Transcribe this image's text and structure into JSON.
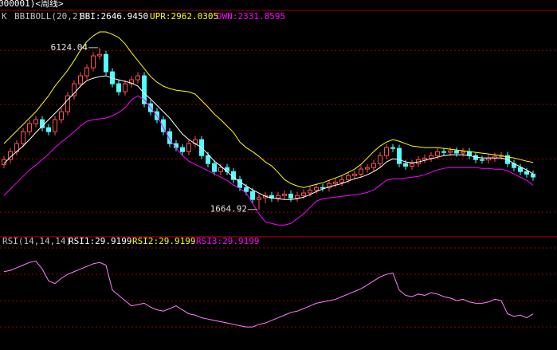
{
  "header": {
    "title": "000001)<周线>"
  },
  "chart_data": [
    {
      "type": "candlestick",
      "label": "K",
      "indicator": "BBIBOLL(20,2)",
      "legend": [
        {
          "text": "BBI:2646.9450",
          "color": "#ffffff"
        },
        {
          "text": "UPR:2962.0305",
          "color": "#ffff00"
        },
        {
          "text": "DWN:2331.8595",
          "color": "#ff00ff"
        }
      ],
      "up_color": "#ff5050",
      "down_color": "#50ffff",
      "ylim": [
        1000,
        7000
      ],
      "grid_levels": [
        1590,
        3060,
        4560,
        6050
      ],
      "grid_color": "#a00000",
      "open": [
        2900,
        3040,
        3260,
        3480,
        3810,
        4030,
        4140,
        3920,
        3810,
        4140,
        4360,
        4800,
        5130,
        5350,
        5570,
        5900,
        5940,
        5460,
        5130,
        4910,
        5130,
        5240,
        5350,
        4580,
        4360,
        4140,
        3810,
        3480,
        3370,
        3260,
        3480,
        3590,
        3150,
        2930,
        2710,
        2820,
        2710,
        2490,
        2270,
        2160,
        1940,
        1990,
        2050,
        1980,
        2050,
        2090,
        1980,
        2050,
        2120,
        2200,
        2270,
        2260,
        2380,
        2420,
        2490,
        2600,
        2640,
        2780,
        2820,
        2930,
        3150,
        3370,
        3350,
        2930,
        2860,
        2930,
        3040,
        3080,
        3150,
        3260,
        3240,
        3280,
        3220,
        3260,
        3150,
        3040,
        3030,
        3080,
        3130,
        3150,
        2930,
        2820,
        2710,
        2640
      ],
      "high": [
        3140,
        3360,
        3580,
        3910,
        4130,
        4240,
        4240,
        4020,
        4240,
        4460,
        4900,
        5230,
        5450,
        5670,
        6000,
        6124.04,
        6040,
        5560,
        5230,
        5230,
        5340,
        5450,
        5450,
        4680,
        4460,
        4240,
        3910,
        3580,
        3470,
        3580,
        3690,
        3690,
        3250,
        3030,
        2920,
        2920,
        2810,
        2590,
        2370,
        2260,
        2090,
        2150,
        2150,
        2150,
        2190,
        2190,
        2150,
        2220,
        2300,
        2370,
        2370,
        2480,
        2520,
        2590,
        2700,
        2740,
        2880,
        2920,
        3030,
        3250,
        3470,
        3470,
        3450,
        3030,
        3030,
        3140,
        3180,
        3250,
        3360,
        3360,
        3380,
        3380,
        3360,
        3360,
        3250,
        3140,
        3180,
        3230,
        3250,
        3250,
        3030,
        2920,
        2810,
        2740
      ],
      "low": [
        2800,
        2940,
        3160,
        3380,
        3710,
        3930,
        3820,
        3710,
        3710,
        4040,
        4260,
        4700,
        5030,
        5250,
        5470,
        5800,
        5360,
        5030,
        4810,
        4810,
        5030,
        5140,
        4480,
        4260,
        4040,
        3710,
        3380,
        3270,
        3160,
        3160,
        3380,
        3050,
        2830,
        2610,
        2610,
        2610,
        2390,
        2170,
        2060,
        1840,
        1664.92,
        1840,
        1880,
        1880,
        1950,
        1880,
        1880,
        1950,
        2020,
        2100,
        2160,
        2160,
        2280,
        2320,
        2390,
        2500,
        2540,
        2680,
        2720,
        2830,
        3050,
        3250,
        2830,
        2760,
        2760,
        2830,
        2940,
        2980,
        3050,
        3140,
        3140,
        3120,
        3120,
        3050,
        2940,
        2930,
        2930,
        2980,
        3030,
        2830,
        2720,
        2610,
        2540,
        2460
      ],
      "close": [
        3040,
        3260,
        3480,
        3810,
        4030,
        4140,
        3920,
        3810,
        4140,
        4360,
        4800,
        5130,
        5350,
        5570,
        5900,
        5940,
        5460,
        5130,
        4910,
        5130,
        5240,
        5350,
        4580,
        4360,
        4140,
        3810,
        3480,
        3370,
        3260,
        3480,
        3590,
        3150,
        2930,
        2710,
        2820,
        2710,
        2490,
        2270,
        2160,
        1940,
        1990,
        2050,
        1980,
        2050,
        2090,
        1980,
        2050,
        2120,
        2200,
        2270,
        2260,
        2380,
        2420,
        2490,
        2600,
        2640,
        2780,
        2820,
        2930,
        3150,
        3370,
        3350,
        2930,
        2860,
        2930,
        3040,
        3080,
        3150,
        3260,
        3240,
        3280,
        3220,
        3260,
        3150,
        3040,
        3030,
        3080,
        3130,
        3150,
        2930,
        2820,
        2710,
        2640,
        2560
      ],
      "series": [
        {
          "color": "#ffffff",
          "values": [
            2930,
            3106,
            3260,
            3414,
            3590,
            3788,
            3964,
            4140,
            4316,
            4492,
            4690,
            4866,
            5064,
            5218,
            5284,
            5328,
            5350,
            5284,
            5240,
            5196,
            5152,
            5064,
            4866,
            4712,
            4536,
            4360,
            4184,
            3964,
            3744,
            3590,
            3480,
            3370,
            3194,
            2996,
            2864,
            2710,
            2556,
            2424,
            2314,
            2204,
            2116,
            2028,
            1984,
            1962,
            1940,
            1940,
            1962,
            2006,
            2072,
            2160,
            2226,
            2292,
            2336,
            2380,
            2446,
            2512,
            2556,
            2622,
            2710,
            2820,
            2974,
            3062,
            3040,
            2974,
            2952,
            2974,
            3018,
            3062,
            3106,
            3150,
            3172,
            3172,
            3172,
            3150,
            3106,
            3084,
            3084,
            3084,
            3084,
            3040,
            2930,
            2842,
            2754,
            2646.945
          ]
        },
        {
          "color": "#ffff00",
          "values": [
            3480,
            3656,
            3832,
            4008,
            4184,
            4360,
            4580,
            4800,
            5064,
            5284,
            5504,
            5768,
            6054,
            6296,
            6450,
            6560,
            6560,
            6494,
            6406,
            6230,
            5988,
            5768,
            5548,
            5328,
            5174,
            5064,
            4998,
            4954,
            4932,
            4910,
            4844,
            4668,
            4492,
            4294,
            4140,
            3964,
            3788,
            3524,
            3370,
            3260,
            3128,
            2974,
            2864,
            2688,
            2490,
            2380,
            2314,
            2270,
            2314,
            2358,
            2402,
            2468,
            2534,
            2600,
            2688,
            2776,
            2908,
            3084,
            3260,
            3414,
            3524,
            3590,
            3546,
            3480,
            3414,
            3392,
            3370,
            3370,
            3370,
            3348,
            3326,
            3304,
            3282,
            3260,
            3238,
            3216,
            3194,
            3172,
            3150,
            3106,
            3084,
            3040,
            2996,
            2962.0305
          ]
        },
        {
          "color": "#ff00ff",
          "values": [
            2050,
            2226,
            2402,
            2578,
            2754,
            2886,
            3040,
            3194,
            3370,
            3524,
            3656,
            3810,
            3964,
            4096,
            4140,
            4162,
            4184,
            4250,
            4338,
            4470,
            4690,
            4800,
            4690,
            4470,
            4250,
            3920,
            3590,
            3370,
            3150,
            2996,
            2908,
            2820,
            2732,
            2644,
            2556,
            2468,
            2336,
            2248,
            2116,
            1830,
            1544,
            1324,
            1280,
            1236,
            1236,
            1280,
            1412,
            1544,
            1720,
            1896,
            1962,
            1984,
            2006,
            2028,
            2050,
            2072,
            2094,
            2138,
            2204,
            2336,
            2468,
            2512,
            2512,
            2534,
            2556,
            2578,
            2622,
            2688,
            2754,
            2798,
            2820,
            2820,
            2820,
            2820,
            2820,
            2798,
            2798,
            2776,
            2776,
            2732,
            2644,
            2556,
            2468,
            2331.8595
          ]
        }
      ],
      "annotations": [
        {
          "value": 6124.04
        },
        {
          "value": 1664.92
        }
      ]
    },
    {
      "type": "line",
      "indicator": "RSI(14,14,14)",
      "legend": [
        {
          "text": "RSI1:29.9199",
          "color": "#ffffff"
        },
        {
          "text": "RSI2:29.9199",
          "color": "#ffff00"
        },
        {
          "text": "RSI3:29.9199",
          "color": "#ff00ff"
        }
      ],
      "ylim": [
        2.5,
        88.5
      ],
      "grid_levels": [
        20,
        40,
        60,
        80
      ],
      "grid_color": "#a00000",
      "series": [
        {
          "color": "#ff80ff",
          "values": [
            62,
            63,
            65,
            67,
            69,
            70,
            64,
            55,
            53,
            57,
            60,
            62,
            64,
            66,
            68,
            69,
            67,
            48,
            44,
            40,
            36,
            37,
            38,
            35,
            33,
            32,
            34,
            36,
            33,
            30,
            29,
            27,
            26,
            25,
            24,
            23,
            22,
            21,
            20,
            20,
            22,
            23,
            25,
            27,
            29,
            31,
            32,
            34,
            36,
            38,
            39,
            40,
            41,
            43,
            45,
            47,
            49,
            52,
            55,
            58,
            60,
            61,
            48,
            44,
            43,
            45,
            44,
            46,
            45,
            43,
            42,
            40,
            41,
            39,
            38,
            38,
            39,
            41,
            40,
            30,
            28,
            29,
            27,
            29.9199
          ]
        }
      ]
    }
  ]
}
